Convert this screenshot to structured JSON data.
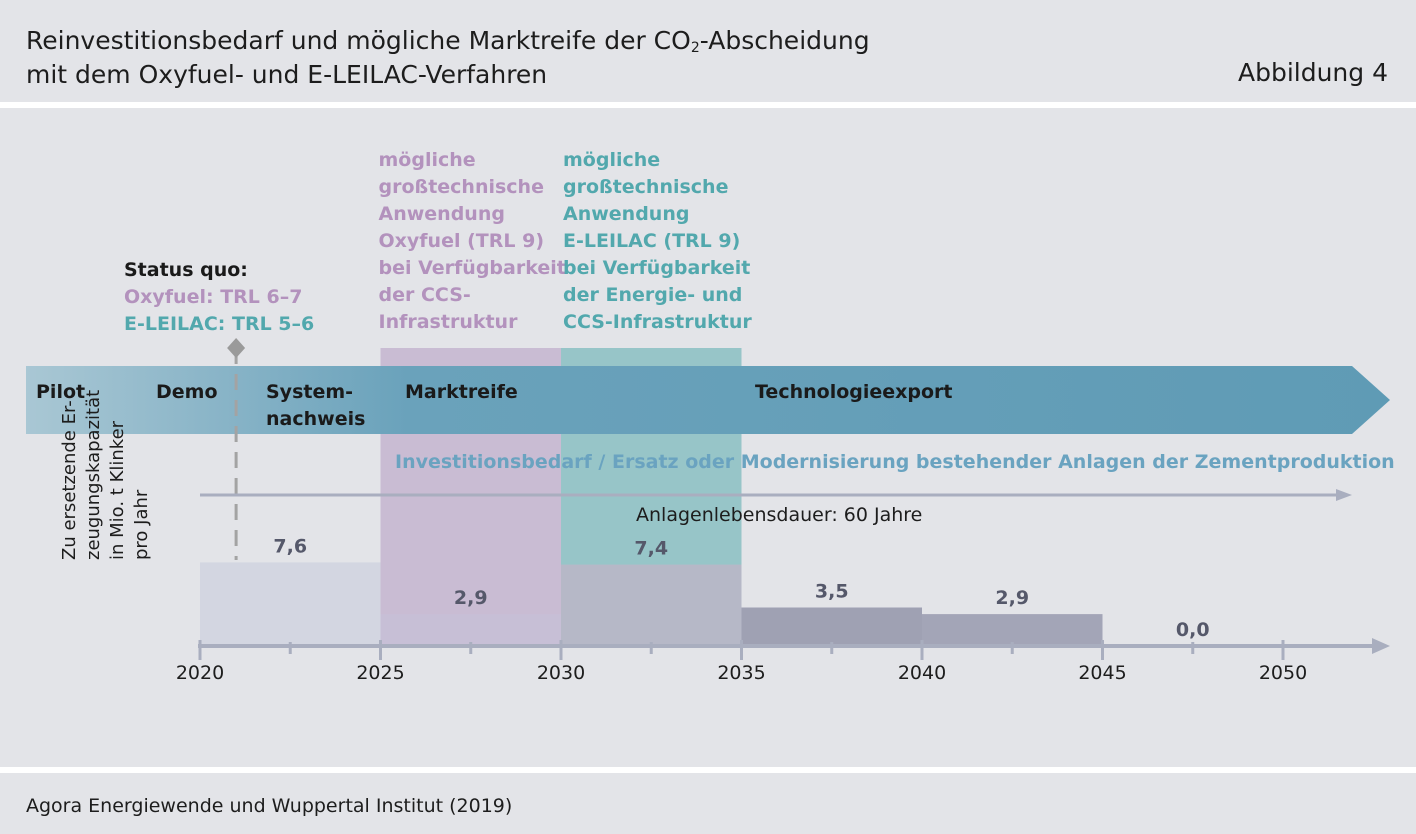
{
  "header": {
    "title_line1_pre": "Reinvestitionsbedarf und mögliche Marktreife der CO",
    "title_line1_sub": "2",
    "title_line1_post": "-Abscheidung",
    "title_line2": "mit dem Oxyfuel- und E-LEILAC-Verfahren",
    "figure_label": "Abbildung 4"
  },
  "source": "Agora Energiewende und Wuppertal Institut (2019)",
  "colors": {
    "oxyfuel": "#b392bd",
    "eleilac": "#52a8ad",
    "arrow": "#5e9bb5",
    "investment_text": "#6aa3c0",
    "axis": "#a9aebf"
  },
  "annotations": {
    "status_title": "Status quo:",
    "status_oxyfuel": "Oxyfuel: TRL 6–7",
    "status_eleilac": "E-LEILAC: TRL 5–6",
    "oxyfuel_lines": [
      "mögliche",
      "großtechnische",
      "Anwendung",
      "Oxyfuel (TRL 9)",
      "bei Verfügbarkeit",
      "der CCS-",
      "Infrastruktur"
    ],
    "eleilac_lines": [
      "mögliche",
      "großtechnische",
      "Anwendung",
      "E-LEILAC (TRL 9)",
      "bei Verfügbarkeit",
      "der Energie- und",
      "CCS-Infrastruktur"
    ],
    "investment": "Investitionsbedarf / Ersatz oder Modernisierung bestehender Anlagen der Zementproduktion",
    "lifetime": "Anlagenlebensdauer: 60 Jahre"
  },
  "phases": {
    "pilot": "Pilot",
    "demo": "Demo",
    "system_line1": "System-",
    "system_line2": "nachweis",
    "market": "Marktreife",
    "export": "Technologieexport"
  },
  "chart_data": {
    "type": "bar",
    "ylabel_lines": [
      "Zu ersetzende Er-",
      "zeugungskapazität",
      "in Mio. t Klinker",
      "pro Jahr"
    ],
    "x_ticks": [
      "2020",
      "2025",
      "2030",
      "2035",
      "2040",
      "2045",
      "2050"
    ],
    "x_range": [
      2020,
      2053
    ],
    "status_quo_year": 2021,
    "oxyfuel_window": [
      2025,
      2030
    ],
    "eleilac_window": [
      2030,
      2035
    ],
    "series": [
      {
        "periods": [
          [
            2020,
            2025
          ],
          [
            2025,
            2030
          ],
          [
            2030,
            2035
          ],
          [
            2035,
            2040
          ],
          [
            2040,
            2045
          ],
          [
            2045,
            2050
          ]
        ],
        "values": [
          7.6,
          2.9,
          7.4,
          3.5,
          2.9,
          0.0
        ],
        "labels": [
          "7,6",
          "2,9",
          "7,4",
          "3,5",
          "2,9",
          "0,0"
        ]
      }
    ]
  }
}
